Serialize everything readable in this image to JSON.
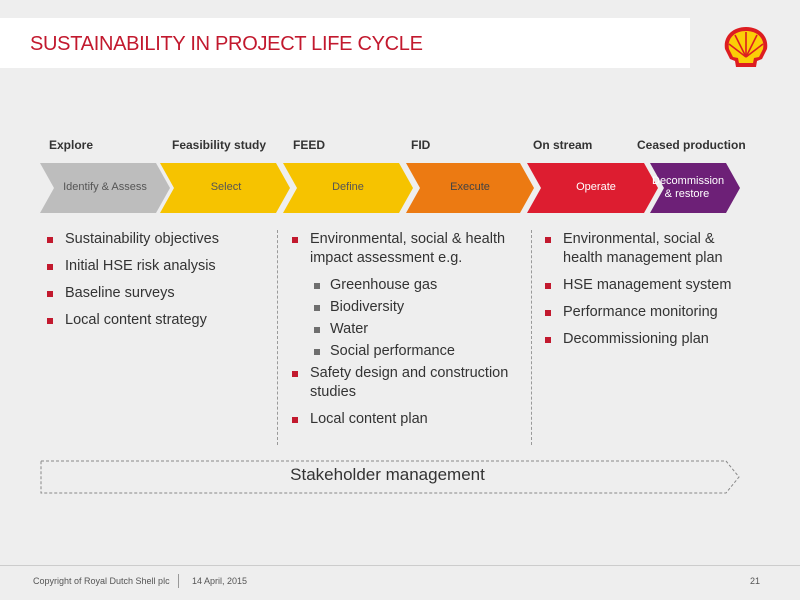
{
  "header": {
    "title": "SUSTAINABILITY IN PROJECT LIFE CYCLE",
    "logo_icon": "shell-logo-icon"
  },
  "stage_labels": [
    "Explore",
    "Feasibility study",
    "FEED",
    "FID",
    "On stream",
    "Ceased production"
  ],
  "phases": [
    {
      "label": "Identify & Assess",
      "color": "#bdbdbd",
      "text_color": "#555555"
    },
    {
      "label": "Select",
      "color": "#f6c300",
      "text_color": "#555555"
    },
    {
      "label": "Define",
      "color": "#f6c300",
      "text_color": "#555555"
    },
    {
      "label": "Execute",
      "color": "#ec7a12",
      "text_color": "#444444"
    },
    {
      "label": "Operate",
      "color": "#dd1d30",
      "text_color": "#ffffff"
    },
    {
      "label_line1": "Decommission",
      "label_line2": "& restore",
      "color": "#6d2077",
      "text_color": "#ffffff"
    }
  ],
  "columns": {
    "left": [
      "Sustainability objectives",
      "Initial HSE risk analysis",
      "Baseline surveys",
      "Local content strategy"
    ],
    "middle": {
      "item1_line1": "Environmental, social & health",
      "item1_line2": "impact assessment e.g.",
      "sub_items": [
        "Greenhouse gas",
        "Biodiversity",
        "Water",
        "Social performance"
      ],
      "item2_line1": "Safety design and construction",
      "item2_line2": "studies",
      "item3": "Local content plan"
    },
    "right": {
      "item1_line1": "Environmental, social &",
      "item1_line2": "health management plan",
      "items": [
        "HSE management system",
        "Performance monitoring",
        "Decommissioning plan"
      ]
    }
  },
  "stakeholder": "Stakeholder management",
  "footer": {
    "copyright": "Copyright of Royal Dutch Shell plc",
    "date": "14 April, 2015",
    "page": "21"
  },
  "colors": {
    "accent_red": "#c2192e",
    "background": "#eeeeee"
  }
}
